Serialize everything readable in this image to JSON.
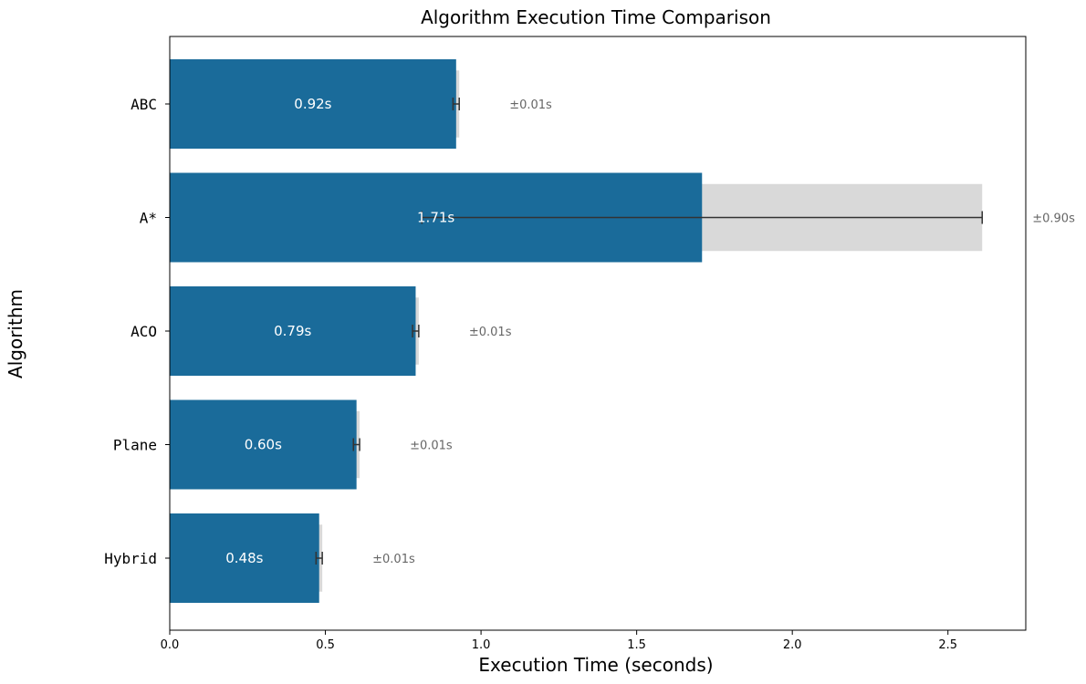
{
  "chart_data": {
    "type": "bar",
    "orientation": "horizontal",
    "title": "Algorithm Execution Time Comparison",
    "xlabel": "Execution Time (seconds)",
    "ylabel": "Algorithm",
    "categories": [
      "ABC",
      "A*",
      "ACO",
      "Plane",
      "Hybrid"
    ],
    "values": [
      0.92,
      1.71,
      0.79,
      0.6,
      0.48
    ],
    "errors": [
      0.01,
      0.9,
      0.01,
      0.01,
      0.01
    ],
    "value_labels": [
      "0.92s",
      "1.71s",
      "0.79s",
      "0.60s",
      "0.48s"
    ],
    "error_labels": [
      "±0.01s",
      "±0.90s",
      "±0.01s",
      "±0.01s",
      "±0.01s"
    ],
    "xlim": [
      0,
      2.75
    ],
    "xticks": [
      0.0,
      0.5,
      1.0,
      1.5,
      2.0,
      2.5
    ],
    "xtick_labels": [
      "0.0",
      "0.5",
      "1.0",
      "1.5",
      "2.0",
      "2.5"
    ],
    "grid": false,
    "bar_color": "#1a6b9a",
    "error_band_color": "#d9d9d9",
    "error_bar_color": "#333333"
  }
}
